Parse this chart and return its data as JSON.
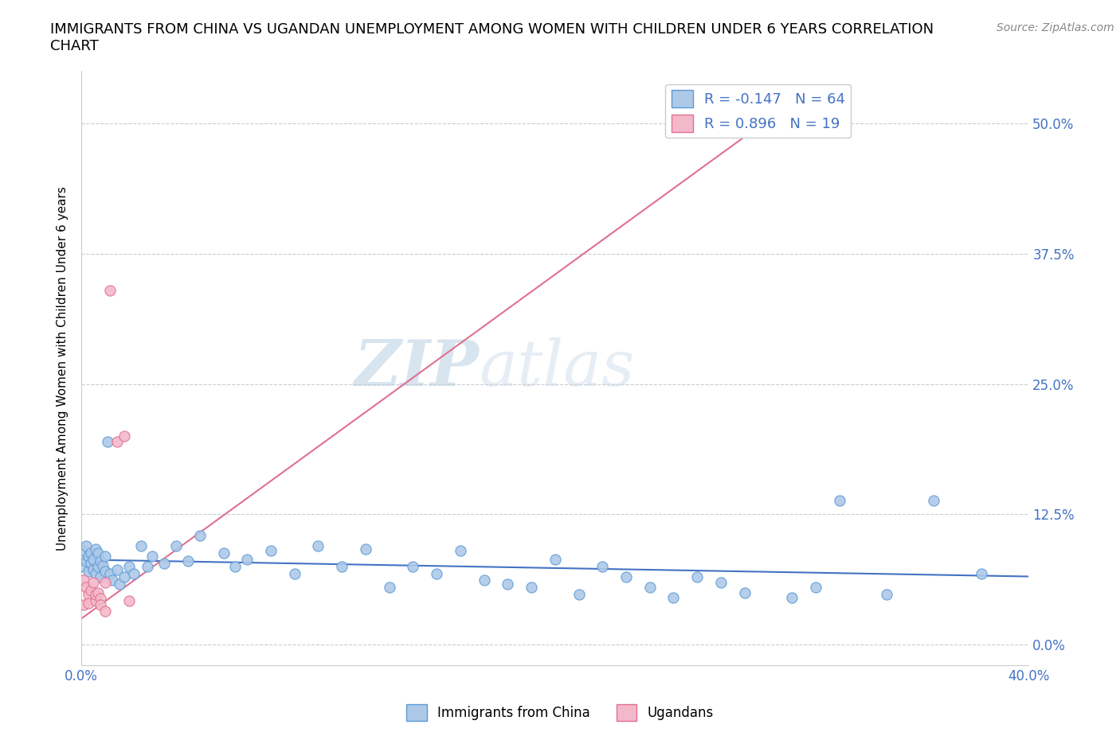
{
  "title": "IMMIGRANTS FROM CHINA VS UGANDAN UNEMPLOYMENT AMONG WOMEN WITH CHILDREN UNDER 6 YEARS CORRELATION\nCHART",
  "source": "Source: ZipAtlas.com",
  "ylabel": "Unemployment Among Women with Children Under 6 years",
  "xlim": [
    0.0,
    0.4
  ],
  "ylim": [
    -0.02,
    0.55
  ],
  "yticks": [
    0.0,
    0.125,
    0.25,
    0.375,
    0.5
  ],
  "ytick_labels": [
    "0.0%",
    "12.5%",
    "25.0%",
    "37.5%",
    "50.0%"
  ],
  "xticks": [
    0.0,
    0.1,
    0.2,
    0.3,
    0.4
  ],
  "xtick_labels": [
    "0.0%",
    "",
    "",
    "",
    "40.0%"
  ],
  "china_color": "#aec9e8",
  "china_edge_color": "#5b9bd5",
  "uganda_color": "#f4b8cb",
  "uganda_edge_color": "#e07090",
  "trend_china_color": "#4472c4",
  "trend_uganda_color": "#e07090",
  "watermark_zi": "ZIP",
  "watermark_atlas": "atlas",
  "R_china": -0.147,
  "N_china": 64,
  "R_uganda": 0.896,
  "N_uganda": 19,
  "china_x": [
    0.001,
    0.001,
    0.002,
    0.002,
    0.003,
    0.003,
    0.004,
    0.004,
    0.005,
    0.005,
    0.006,
    0.006,
    0.007,
    0.007,
    0.008,
    0.008,
    0.009,
    0.01,
    0.01,
    0.011,
    0.012,
    0.013,
    0.015,
    0.016,
    0.018,
    0.02,
    0.022,
    0.025,
    0.028,
    0.03,
    0.035,
    0.04,
    0.045,
    0.05,
    0.06,
    0.065,
    0.07,
    0.08,
    0.09,
    0.1,
    0.11,
    0.12,
    0.13,
    0.14,
    0.15,
    0.16,
    0.17,
    0.18,
    0.19,
    0.2,
    0.21,
    0.22,
    0.23,
    0.24,
    0.25,
    0.26,
    0.27,
    0.28,
    0.3,
    0.31,
    0.32,
    0.34,
    0.36,
    0.38
  ],
  "china_y": [
    0.075,
    0.09,
    0.08,
    0.095,
    0.07,
    0.085,
    0.078,
    0.088,
    0.072,
    0.082,
    0.068,
    0.092,
    0.075,
    0.088,
    0.065,
    0.08,
    0.076,
    0.07,
    0.085,
    0.195,
    0.068,
    0.062,
    0.072,
    0.058,
    0.065,
    0.075,
    0.068,
    0.095,
    0.075,
    0.085,
    0.078,
    0.095,
    0.08,
    0.105,
    0.088,
    0.075,
    0.082,
    0.09,
    0.068,
    0.095,
    0.075,
    0.092,
    0.055,
    0.075,
    0.068,
    0.09,
    0.062,
    0.058,
    0.055,
    0.082,
    0.048,
    0.075,
    0.065,
    0.055,
    0.045,
    0.065,
    0.06,
    0.05,
    0.045,
    0.055,
    0.138,
    0.048,
    0.138,
    0.068
  ],
  "uganda_x": [
    0.001,
    0.001,
    0.002,
    0.003,
    0.003,
    0.004,
    0.005,
    0.006,
    0.006,
    0.007,
    0.008,
    0.008,
    0.01,
    0.01,
    0.012,
    0.015,
    0.018,
    0.02,
    0.295
  ],
  "uganda_y": [
    0.062,
    0.038,
    0.055,
    0.048,
    0.04,
    0.052,
    0.06,
    0.042,
    0.048,
    0.05,
    0.044,
    0.038,
    0.06,
    0.032,
    0.34,
    0.195,
    0.2,
    0.042,
    0.51
  ],
  "uganda_trend_x": [
    0.0,
    0.295
  ],
  "uganda_trend_y_intercept": 0.025,
  "uganda_trend_slope": 1.65
}
